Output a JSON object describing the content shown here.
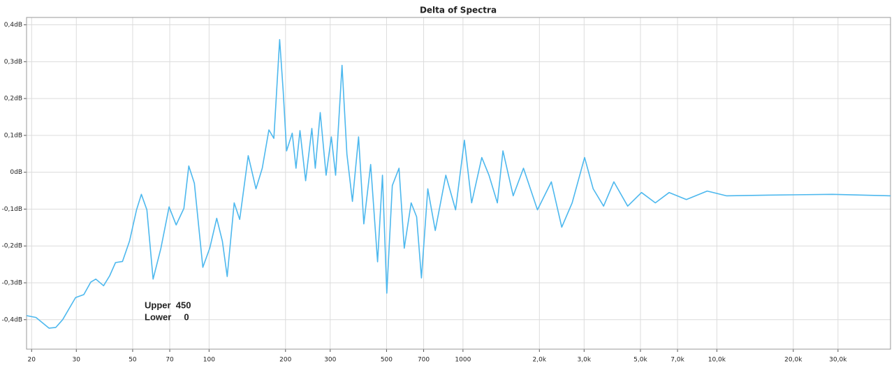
{
  "chart_data": {
    "type": "line",
    "title": "Delta of Spectra",
    "annotations": [
      "Upper  450",
      "Lower     0"
    ],
    "xscale": "log",
    "grid": true,
    "xlim": [
      19.1,
      48300
    ],
    "ylim": [
      -0.48,
      0.42
    ],
    "xticks": [
      20,
      30,
      50,
      70,
      100,
      200,
      300,
      500,
      700,
      1000,
      {
        "value": 2000,
        "label": "2,0k"
      },
      {
        "value": 3000,
        "label": "3,0k"
      },
      {
        "value": 5000,
        "label": "5,0k"
      },
      {
        "value": 7000,
        "label": "7,0k"
      },
      {
        "value": 10000,
        "label": "10,0k"
      },
      {
        "value": 20000,
        "label": "20,0k"
      },
      {
        "value": 30000,
        "label": "30,0k"
      }
    ],
    "yticks": [
      {
        "value": 0.4,
        "label": "0,4dB"
      },
      {
        "value": 0.3,
        "label": "0,3dB"
      },
      {
        "value": 0.2,
        "label": "0,2dB"
      },
      {
        "value": 0.1,
        "label": "0,1dB"
      },
      {
        "value": 0,
        "label": "0dB"
      },
      {
        "value": -0.1,
        "label": "-0,1dB"
      },
      {
        "value": -0.2,
        "label": "-0,2dB"
      },
      {
        "value": -0.3,
        "label": "-0,3dB"
      },
      {
        "value": -0.4,
        "label": "-0,4dB"
      }
    ],
    "x": [
      19.1,
      20.8,
      23.4,
      24.9,
      26.5,
      29.8,
      32.1,
      34.2,
      35.8,
      38.4,
      40.6,
      42.8,
      45.6,
      48.6,
      51.8,
      54.1,
      56.9,
      60.2,
      64.6,
      69.6,
      74.2,
      79.6,
      83.2,
      87.5,
      94.5,
      100.6,
      107.2,
      112.8,
      117.9,
      125.6,
      132,
      142.6,
      153,
      162,
      172,
      180,
      189.7,
      195.9,
      201.9,
      212.5,
      220,
      228,
      240,
      254,
      262,
      274,
      289,
      303,
      315,
      334,
      349,
      367,
      388,
      407,
      433,
      461,
      482,
      501,
      527,
      560,
      587,
      625,
      657,
      686,
      727,
      778,
      856,
      935,
      1013,
      1082,
      1186,
      1266,
      1366,
      1437,
      1577,
      1731,
      1965,
      2229,
      2450,
      2692,
      3013,
      3258,
      3580,
      3930,
      4455,
      5050,
      5724,
      6488,
      7585,
      9157,
      10900,
      15900,
      28500,
      48300
    ],
    "series": [
      {
        "name": "Delta",
        "color": "#4db8ee",
        "values": [
          -0.389,
          -0.394,
          -0.423,
          -0.421,
          -0.4,
          -0.34,
          -0.332,
          -0.298,
          -0.29,
          -0.308,
          -0.281,
          -0.245,
          -0.242,
          -0.187,
          -0.102,
          -0.06,
          -0.102,
          -0.29,
          -0.206,
          -0.094,
          -0.143,
          -0.098,
          0.017,
          -0.03,
          -0.258,
          -0.206,
          -0.125,
          -0.187,
          -0.283,
          -0.083,
          -0.128,
          0.045,
          -0.045,
          0.011,
          0.115,
          0.092,
          0.36,
          0.219,
          0.058,
          0.106,
          0.011,
          0.113,
          -0.023,
          0.119,
          0.011,
          0.162,
          -0.008,
          0.096,
          -0.008,
          0.29,
          0.049,
          -0.079,
          0.096,
          -0.14,
          0.021,
          -0.243,
          -0.008,
          -0.328,
          -0.036,
          0.011,
          -0.206,
          -0.083,
          -0.121,
          -0.287,
          -0.045,
          -0.158,
          -0.008,
          -0.102,
          0.087,
          -0.083,
          0.04,
          -0.008,
          -0.083,
          0.058,
          -0.064,
          0.011,
          -0.102,
          -0.026,
          -0.149,
          -0.083,
          0.04,
          -0.045,
          -0.092,
          -0.026,
          -0.092,
          -0.055,
          -0.083,
          -0.055,
          -0.074,
          -0.051,
          -0.064,
          -0.062,
          -0.06,
          -0.064
        ]
      }
    ]
  }
}
